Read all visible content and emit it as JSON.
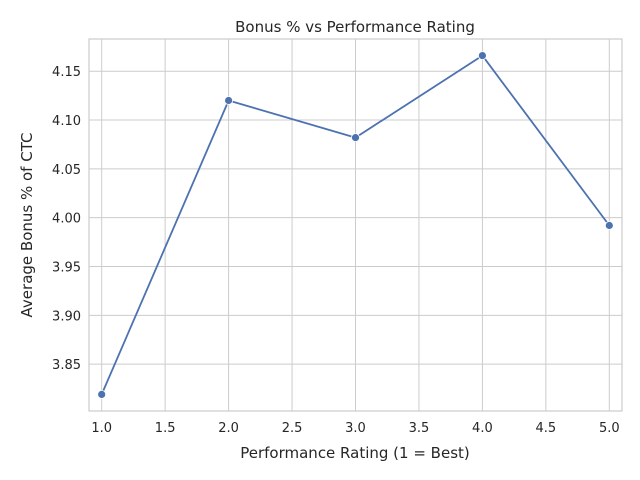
{
  "chart_data": {
    "type": "line",
    "title": "Bonus % vs Performance Rating",
    "xlabel": "Performance Rating (1 = Best)",
    "ylabel": "Average Bonus % of CTC",
    "x": [
      1,
      2,
      3,
      4,
      5
    ],
    "series": [
      {
        "values": [
          3.819,
          4.12,
          4.082,
          4.166,
          3.992
        ]
      }
    ],
    "xlim": [
      0.9,
      5.1
    ],
    "ylim": [
      3.802,
      4.183
    ],
    "xticks": [
      1.0,
      1.5,
      2.0,
      2.5,
      3.0,
      3.5,
      4.0,
      4.5,
      5.0
    ],
    "yticks": [
      3.85,
      3.9,
      3.95,
      4.0,
      4.05,
      4.1,
      4.15
    ],
    "xtick_labels": [
      "1.0",
      "1.5",
      "2.0",
      "2.5",
      "3.0",
      "3.5",
      "4.0",
      "4.5",
      "5.0"
    ],
    "ytick_labels": [
      "3.85",
      "3.90",
      "3.95",
      "4.00",
      "4.05",
      "4.10",
      "4.15"
    ],
    "grid": true,
    "line_color": "#4c72b0",
    "grid_color": "#cccccc",
    "axes_color": "#cccccc"
  }
}
